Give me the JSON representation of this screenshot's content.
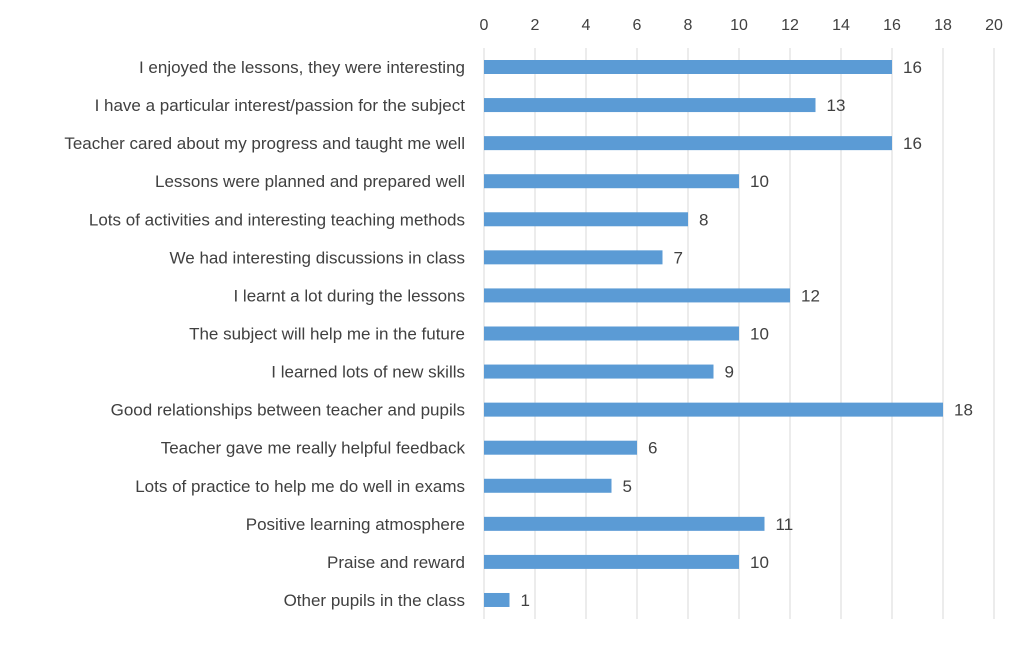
{
  "chart_data": {
    "type": "bar",
    "orientation": "horizontal",
    "categories": [
      "I enjoyed the lessons, they were interesting",
      "I have a particular interest/passion for the subject",
      "Teacher cared about my progress and taught me well",
      "Lessons were planned and prepared well",
      "Lots of activities and interesting teaching methods",
      "We had interesting discussions in class",
      "I learnt a lot during the lessons",
      "The subject will help me in the future",
      "I learned lots of new skills",
      "Good relationships between teacher and pupils",
      "Teacher gave me really helpful feedback",
      "Lots of practice to help me do well in exams",
      "Positive learning atmosphere",
      "Praise and reward",
      "Other pupils in the class"
    ],
    "values": [
      16,
      13,
      16,
      10,
      8,
      7,
      12,
      10,
      9,
      18,
      6,
      5,
      11,
      10,
      1
    ],
    "xlim": [
      0,
      20
    ],
    "x_ticks": [
      0,
      2,
      4,
      6,
      8,
      10,
      12,
      14,
      16,
      18,
      20
    ],
    "x_axis_position": "top",
    "grid": "vertical",
    "data_labels": true,
    "legend": "none",
    "colors": {
      "bar": "#5b9bd5",
      "grid": "#d9d9d9",
      "text": "#404040"
    }
  }
}
